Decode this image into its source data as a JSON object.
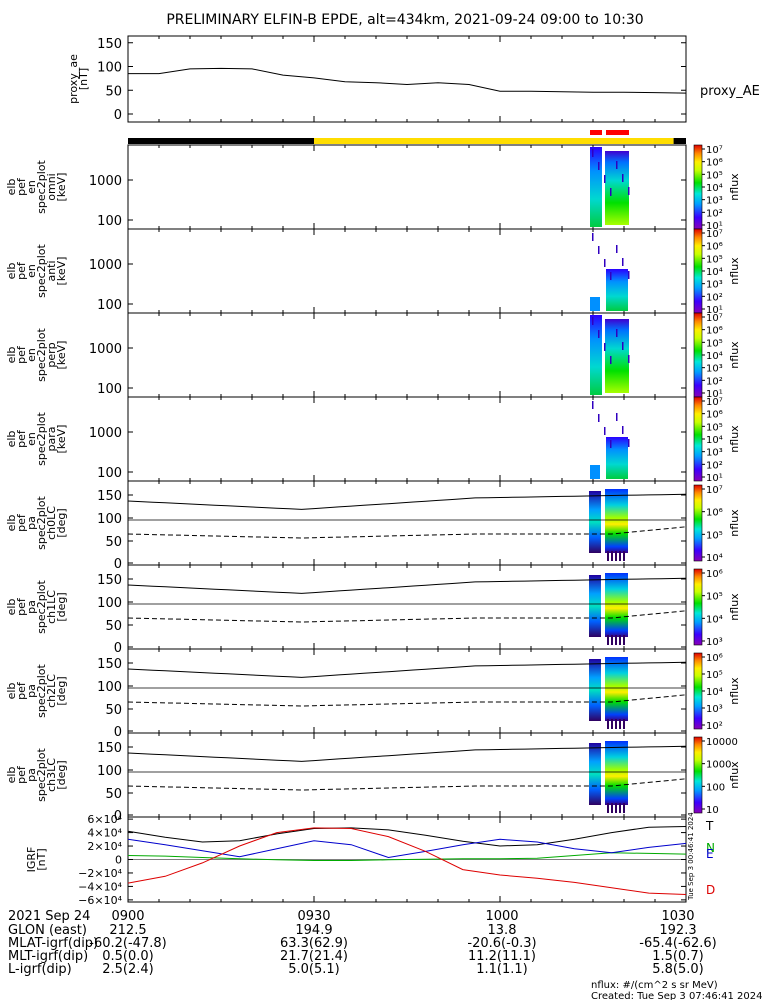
{
  "title": "PRELIMINARY ELFIN-B EPDE, alt=434km, 2021-09-24 09:00 to 10:30",
  "colors": {
    "orbit_dark": "#000000",
    "orbit_sunlit": "#ffdd00",
    "science_zone": "#ff0000",
    "grf_total": "#000000",
    "grf_n": "#00aa00",
    "grf_e": "#0000cc",
    "grf_d": "#dd0000"
  },
  "chart_data": [
    {
      "type": "line",
      "panel": "proxy_ae",
      "ylabel": [
        "proxy_ae",
        "[nT]"
      ],
      "yticks": [
        "150",
        "100",
        "50",
        "0"
      ],
      "ylim": [
        0,
        160
      ],
      "legend": "proxy_AE",
      "x_minutes": [
        0,
        5,
        10,
        15,
        20,
        25,
        30,
        35,
        40,
        45,
        50,
        55,
        60,
        65,
        70,
        75,
        80,
        85,
        90
      ],
      "values": [
        85,
        85,
        95,
        96,
        95,
        82,
        76,
        68,
        66,
        62,
        66,
        62,
        48,
        48,
        47,
        46,
        46,
        45,
        44
      ]
    },
    {
      "type": "heatmap",
      "panel": "spectrogram",
      "ylabel": [
        "elb",
        "pef",
        "en",
        "spec2plot",
        "omni",
        "[keV]"
      ],
      "yticks": [
        "1000",
        "100"
      ],
      "zlabel": "nflux",
      "zrange": "1e1 - 1e7",
      "zticks": [
        "10⁷",
        "10⁶",
        "10⁵",
        "10⁴",
        "10³",
        "10²",
        "10¹"
      ]
    },
    {
      "type": "heatmap",
      "panel": "spectrogram",
      "ylabel": [
        "elb",
        "pef",
        "en",
        "spec2plot",
        "anti",
        "[keV]"
      ],
      "yticks": [
        "1000",
        "100"
      ],
      "zlabel": "nflux",
      "zrange": "1e1 - 1e7",
      "zticks": [
        "10⁷",
        "10⁶",
        "10⁵",
        "10⁴",
        "10³",
        "10²",
        "10¹"
      ]
    },
    {
      "type": "heatmap",
      "panel": "spectrogram",
      "ylabel": [
        "elb",
        "pef",
        "en",
        "spec2plot",
        "perp",
        "[keV]"
      ],
      "yticks": [
        "1000",
        "100"
      ],
      "zlabel": "nflux",
      "zrange": "1e1 - 1e7",
      "zticks": [
        "10⁷",
        "10⁶",
        "10⁵",
        "10⁴",
        "10³",
        "10²",
        "10¹"
      ]
    },
    {
      "type": "heatmap",
      "panel": "spectrogram",
      "ylabel": [
        "elb",
        "pef",
        "en",
        "spec2plot",
        "para",
        "[keV]"
      ],
      "yticks": [
        "1000",
        "100"
      ],
      "zlabel": "nflux",
      "zrange": "1e1 - 1e7",
      "zticks": [
        "10⁷",
        "10⁶",
        "10⁵",
        "10⁴",
        "10³",
        "10²",
        "10¹"
      ]
    },
    {
      "type": "heatmap",
      "panel": "pitch_angle",
      "ylabel": [
        "elb",
        "pef",
        "pa",
        "spec2plot",
        "ch0LC",
        "[deg]"
      ],
      "yticks": [
        "150",
        "100",
        "50",
        "0"
      ],
      "zlabel": "nflux",
      "zrange": "1e3 - 1e7",
      "zticks": [
        "10⁷",
        "10⁶",
        "10⁵",
        "10⁴"
      ]
    },
    {
      "type": "heatmap",
      "panel": "pitch_angle",
      "ylabel": [
        "elb",
        "pef",
        "pa",
        "spec2plot",
        "ch1LC",
        "[deg]"
      ],
      "yticks": [
        "150",
        "100",
        "50",
        "0"
      ],
      "zlabel": "nflux",
      "zrange": "1e3 - 1e7",
      "zticks": [
        "10⁶",
        "10⁵",
        "10⁴",
        "10³"
      ]
    },
    {
      "type": "heatmap",
      "panel": "pitch_angle",
      "ylabel": [
        "elb",
        "pef",
        "pa",
        "spec2plot",
        "ch2LC",
        "[deg]"
      ],
      "yticks": [
        "150",
        "100",
        "50",
        "0"
      ],
      "zlabel": "nflux",
      "zrange": "1e2 - 1e6",
      "zticks": [
        "10⁶",
        "10⁵",
        "10⁴",
        "10³",
        "10²"
      ]
    },
    {
      "type": "heatmap",
      "panel": "pitch_angle",
      "ylabel": [
        "elb",
        "pef",
        "pa",
        "spec2plot",
        "ch3LC",
        "[deg]"
      ],
      "yticks": [
        "150",
        "100",
        "50",
        "0"
      ],
      "zlabel": "nflux",
      "zrange": "10 - 10000",
      "zticks": [
        "10000",
        "1000",
        "100",
        "10"
      ]
    },
    {
      "type": "line",
      "panel": "igrf",
      "ylabel": [
        "IGRF",
        "[nT]"
      ],
      "yticks": [
        "6×10⁴",
        "4×10⁴",
        "2×10⁴",
        "0",
        "−2×10⁴",
        "−4×10⁴",
        "−6×10⁴"
      ],
      "ylim": [
        -60000,
        60000
      ],
      "legend": [
        "T",
        "N",
        "E",
        "D"
      ],
      "x_minutes": [
        0,
        6,
        12,
        18,
        24,
        30,
        36,
        42,
        48,
        54,
        60,
        66,
        72,
        78,
        84,
        90
      ],
      "series": [
        {
          "name": "T",
          "values": [
            42000,
            33000,
            26000,
            28000,
            38000,
            46000,
            47000,
            44000,
            36000,
            27000,
            20000,
            22000,
            30000,
            40000,
            48000,
            49000
          ]
        },
        {
          "name": "N",
          "values": [
            6000,
            5000,
            3000,
            1000,
            -500,
            -1500,
            -1500,
            -500,
            500,
            1000,
            1000,
            2000,
            6000,
            10000,
            9000,
            8000
          ]
        },
        {
          "name": "E",
          "values": [
            30000,
            22000,
            13000,
            4000,
            16000,
            28000,
            22000,
            3000,
            12000,
            22000,
            30000,
            26000,
            16000,
            10000,
            18000,
            24000
          ]
        },
        {
          "name": "D",
          "values": [
            -35000,
            -25000,
            -5000,
            20000,
            40000,
            47000,
            46000,
            34000,
            12000,
            -15000,
            -23000,
            -28000,
            -34000,
            -42000,
            -50000,
            -52000
          ]
        }
      ]
    }
  ],
  "time_axis": {
    "header": "2021 Sep 24",
    "ticks": [
      "0900",
      "0930",
      "1000",
      "1030"
    ],
    "rows": [
      {
        "label": "GLON (east)",
        "values": [
          "212.5",
          "194.9",
          "13.8",
          "192.3"
        ]
      },
      {
        "label": "MLAT-igrf(dip)",
        "values": [
          "-60.2(-47.8)",
          "63.3(62.9)",
          "-20.6(-0.3)",
          "-65.4(-62.6)"
        ]
      },
      {
        "label": "MLT-igrf(dip)",
        "values": [
          "0.5(0.0)",
          "21.7(21.4)",
          "11.2(11.1)",
          "1.5(0.7)"
        ]
      },
      {
        "label": "L-igrf(dip)",
        "values": [
          "2.5(2.4)",
          "5.0(5.1)",
          "1.1(1.1)",
          "5.8(5.0)"
        ]
      }
    ]
  },
  "footer": {
    "units": "nflux: #/(cm^2 s sr MeV)",
    "created": "Created: Tue Sep  3 07:46:41 2024",
    "vertical_stamp": "Tue Sep  3 00:46:41 2024"
  }
}
